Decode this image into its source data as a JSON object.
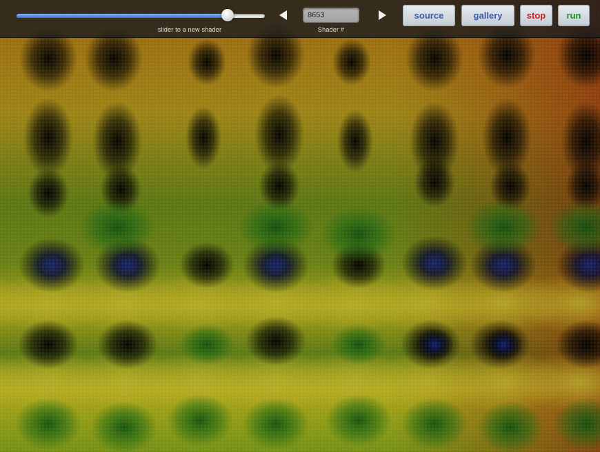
{
  "slider": {
    "caption": "slider to a new shader",
    "value_fraction": 0.85
  },
  "shader": {
    "number": "8653",
    "caption": "Shader #"
  },
  "nav": {
    "prev_icon": "left-triangle-icon",
    "next_icon": "right-triangle-icon"
  },
  "buttons": {
    "source": "source",
    "gallery": "gallery",
    "stop": "stop",
    "run": "run"
  },
  "colors": {
    "slider_fill": "#3b6fd8",
    "source_text": "#3b5ea9",
    "gallery_text": "#3b5ea9",
    "stop_text": "#c62127",
    "run_text": "#1e8c2c"
  }
}
